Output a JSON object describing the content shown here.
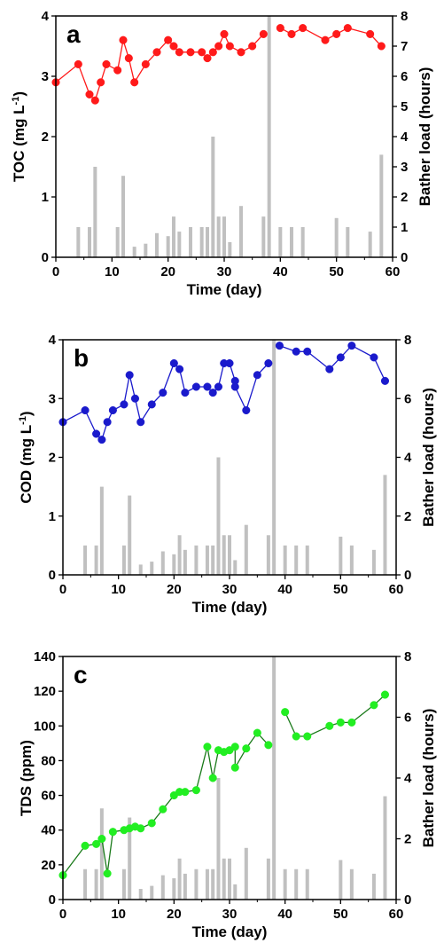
{
  "chart_data": [
    {
      "panel_letter": "a",
      "type": "line+bar",
      "x_label": "Time (day)",
      "x_ticks": [
        "0",
        "10",
        "20",
        "30",
        "40",
        "50",
        "60"
      ],
      "xlim": [
        0,
        60
      ],
      "y_left_label_main": "TOC (mg L",
      "y_left_label_sup": "-1",
      "y_left_label_end": ")",
      "y_left_color": "#ff1a1a",
      "y_left_ticks": [
        "0",
        "1",
        "2",
        "3",
        "4"
      ],
      "ylim_left": [
        0,
        4
      ],
      "y_right_label": "Bather load (hours)",
      "y_right_ticks": [
        "0",
        "1",
        "2",
        "3",
        "4",
        "5",
        "6",
        "7",
        "8"
      ],
      "ylim_right": [
        0,
        8
      ],
      "line_color": "#ff1a1a",
      "line_x": [
        0,
        4,
        6,
        7,
        8,
        9,
        11,
        12,
        13,
        14,
        16,
        18,
        20,
        21,
        22,
        24,
        26,
        27,
        28,
        29,
        30,
        31,
        33,
        35,
        37
      ],
      "line_y": [
        2.9,
        3.2,
        2.7,
        2.6,
        2.9,
        3.2,
        3.1,
        3.6,
        3.3,
        2.9,
        3.2,
        3.4,
        3.6,
        3.5,
        3.4,
        3.4,
        3.4,
        3.3,
        3.4,
        3.5,
        3.7,
        3.5,
        3.4,
        3.5,
        3.7
      ],
      "line2_x": [
        40,
        42,
        44,
        48,
        50,
        52,
        56,
        58
      ],
      "line2_y": [
        3.8,
        3.7,
        3.8,
        3.6,
        3.7,
        3.8,
        3.7,
        3.5
      ],
      "bar_color": "#c0c0c0",
      "bar_x": [
        4,
        6,
        7,
        11,
        12,
        14,
        16,
        18,
        20,
        21,
        22,
        24,
        26,
        27,
        28,
        29,
        30,
        31,
        33,
        37,
        38,
        40,
        42,
        44,
        50,
        52,
        56,
        58
      ],
      "bar_y": [
        1.0,
        1.0,
        3.0,
        1.0,
        2.7,
        0.35,
        0.45,
        0.8,
        0.7,
        1.35,
        0.85,
        1.0,
        1.0,
        1.0,
        4.0,
        1.35,
        1.35,
        0.5,
        1.7,
        1.35,
        8.0,
        1.0,
        1.0,
        1.0,
        1.3,
        1.0,
        0.85,
        3.4
      ]
    },
    {
      "panel_letter": "b",
      "type": "line+bar",
      "x_label": "Time (day)",
      "x_ticks": [
        "0",
        "10",
        "20",
        "30",
        "40",
        "50",
        "60"
      ],
      "xlim": [
        0,
        60
      ],
      "y_left_label_main": "COD (mg L",
      "y_left_label_sup": "-1",
      "y_left_label_end": ")",
      "y_left_color": "#1a1acc",
      "y_left_ticks": [
        "0",
        "1",
        "2",
        "3",
        "4"
      ],
      "ylim_left": [
        0,
        4
      ],
      "y_right_label": "Bather load (hours)",
      "y_right_ticks": [
        "0",
        "2",
        "4",
        "6",
        "8"
      ],
      "ylim_right": [
        0,
        8
      ],
      "line_color": "#1a1acc",
      "line_x": [
        0,
        4,
        6,
        7,
        8,
        9,
        11,
        12,
        13,
        14,
        16,
        18,
        20,
        21,
        22,
        24,
        26,
        27,
        28,
        29,
        30,
        31,
        31,
        33,
        35,
        37
      ],
      "line_y": [
        2.6,
        2.8,
        2.4,
        2.3,
        2.6,
        2.8,
        2.9,
        3.4,
        3.0,
        2.6,
        2.9,
        3.1,
        3.6,
        3.5,
        3.1,
        3.2,
        3.2,
        3.1,
        3.2,
        3.6,
        3.6,
        3.3,
        3.2,
        2.8,
        3.4,
        3.6
      ],
      "line2_x": [
        39,
        42,
        44,
        48,
        50,
        52,
        56,
        58
      ],
      "line2_y": [
        3.9,
        3.8,
        3.8,
        3.5,
        3.7,
        3.9,
        3.7,
        3.3
      ],
      "bar_color": "#c0c0c0",
      "bar_x": [
        4,
        6,
        7,
        11,
        12,
        14,
        16,
        18,
        20,
        21,
        22,
        24,
        26,
        27,
        28,
        29,
        30,
        31,
        33,
        37,
        38,
        40,
        42,
        44,
        50,
        52,
        56,
        58
      ],
      "bar_y": [
        1.0,
        1.0,
        3.0,
        1.0,
        2.7,
        0.35,
        0.45,
        0.8,
        0.7,
        1.35,
        0.85,
        1.0,
        1.0,
        1.0,
        4.0,
        1.35,
        1.35,
        0.5,
        1.7,
        1.35,
        8.0,
        1.0,
        1.0,
        1.0,
        1.3,
        1.0,
        0.85,
        3.4
      ]
    },
    {
      "panel_letter": "c",
      "type": "line+bar",
      "x_label": "Time (day)",
      "x_ticks": [
        "0",
        "10",
        "20",
        "30",
        "40",
        "50",
        "60"
      ],
      "xlim": [
        0,
        60
      ],
      "y_left_label_main": "TDS (ppm)",
      "y_left_label_sup": "",
      "y_left_label_end": "",
      "y_left_color": "#22dd22",
      "y_left_ticks": [
        "0",
        "20",
        "40",
        "60",
        "80",
        "100",
        "120",
        "140"
      ],
      "ylim_left": [
        0,
        140
      ],
      "y_right_label": "Bather load (hours)",
      "y_right_ticks": [
        "0",
        "2",
        "4",
        "6",
        "8"
      ],
      "ylim_right": [
        0,
        8
      ],
      "line_color": "#1a7a1a",
      "marker_color": "#22ee22",
      "line_x": [
        0,
        4,
        6,
        7,
        8,
        9,
        11,
        12,
        13,
        14,
        16,
        18,
        20,
        21,
        22,
        24,
        26,
        27,
        28,
        29,
        30,
        31,
        31,
        33,
        35,
        37
      ],
      "line_y": [
        14,
        31,
        32,
        35,
        15,
        39,
        40,
        41,
        42,
        41,
        44,
        52,
        60,
        62,
        62,
        63,
        88,
        70,
        86,
        85,
        86,
        88,
        76,
        87,
        96,
        89
      ],
      "line2_x": [
        40,
        42,
        44,
        48,
        50,
        52,
        56,
        58
      ],
      "line2_y": [
        108,
        94,
        94,
        100,
        102,
        102,
        112,
        118
      ],
      "bar_color": "#c0c0c0",
      "bar_x": [
        4,
        6,
        7,
        11,
        12,
        14,
        16,
        18,
        20,
        21,
        22,
        24,
        26,
        27,
        28,
        29,
        30,
        31,
        33,
        37,
        38,
        40,
        42,
        44,
        50,
        52,
        56,
        58
      ],
      "bar_y": [
        1.0,
        1.0,
        3.0,
        1.0,
        2.7,
        0.35,
        0.45,
        0.8,
        0.7,
        1.35,
        0.85,
        1.0,
        1.0,
        1.0,
        4.0,
        1.35,
        1.35,
        0.5,
        1.7,
        1.35,
        8.0,
        1.0,
        1.0,
        1.0,
        1.3,
        1.0,
        0.85,
        3.4
      ]
    }
  ]
}
